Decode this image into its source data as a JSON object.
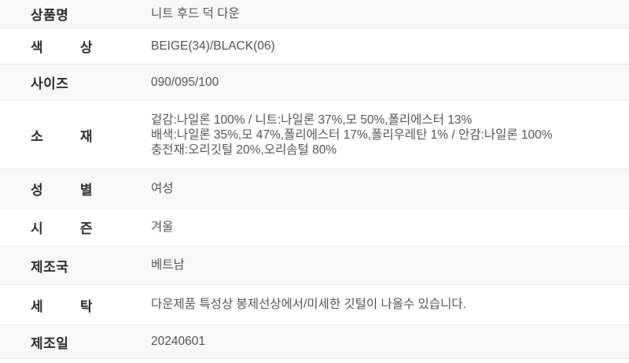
{
  "colors": {
    "alt_row_bg": "#f8f8f8",
    "divider": "#ebebeb",
    "label_text": "#2e2e2e",
    "value_text": "#555555"
  },
  "spec_table": {
    "rows": [
      {
        "label": "상품명",
        "value": "니트 후드 덕 다운"
      },
      {
        "label": "색 상",
        "value": "BEIGE(34)/BLACK(06)"
      },
      {
        "label": "사이즈",
        "value": "090/095/100"
      },
      {
        "label": "소 재",
        "value_lines": [
          "겉감:나일론 100% / 니트:나일론 37%,모 50%,폴리에스터 13%",
          "배색:나일론 35%,모 47%,폴리에스터 17%,폴리우레탄 1% / 안감:나일론 100%",
          "충전재:오리깃털 20%,오리솜털 80%"
        ]
      },
      {
        "label": "성 별",
        "value": "여성"
      },
      {
        "label": "시 즌",
        "value": "겨울"
      },
      {
        "label": "제조국",
        "value": "베트남"
      },
      {
        "label": "세 탁",
        "value": "다운제품 특성상 봉제선상에서/미세한 깃털이 나올수 있습니다."
      },
      {
        "label": "제조일",
        "value": "20240601"
      }
    ]
  }
}
